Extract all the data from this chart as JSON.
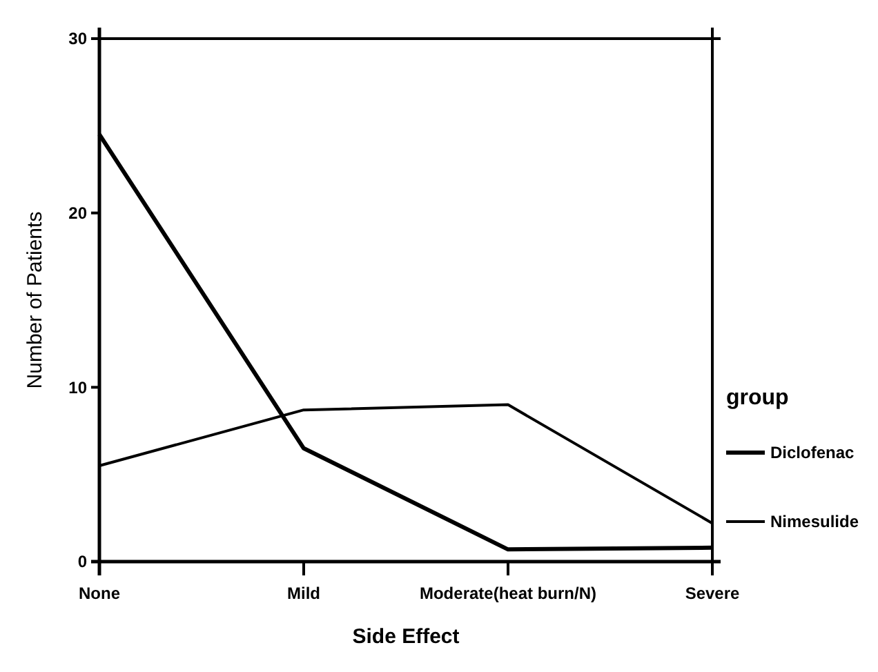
{
  "chart_data": {
    "type": "line",
    "xlabel": "Side Effect",
    "ylabel": "Number of Patients",
    "legend_title": "group",
    "legend": "right",
    "marker": "none",
    "line_style": "solid",
    "categories": [
      "None",
      "Mild",
      "Moderate(heat burn/N)",
      "Severe"
    ],
    "ylim": [
      0,
      30
    ],
    "yticks": [
      0,
      10,
      20,
      30
    ],
    "series": [
      {
        "name": "Diclofenac",
        "color": "#000000",
        "values": [
          24.5,
          6.5,
          0.7,
          0.8
        ]
      },
      {
        "name": "Nimesulide",
        "color": "#000000",
        "values": [
          5.5,
          8.7,
          9,
          2.2
        ]
      }
    ]
  }
}
